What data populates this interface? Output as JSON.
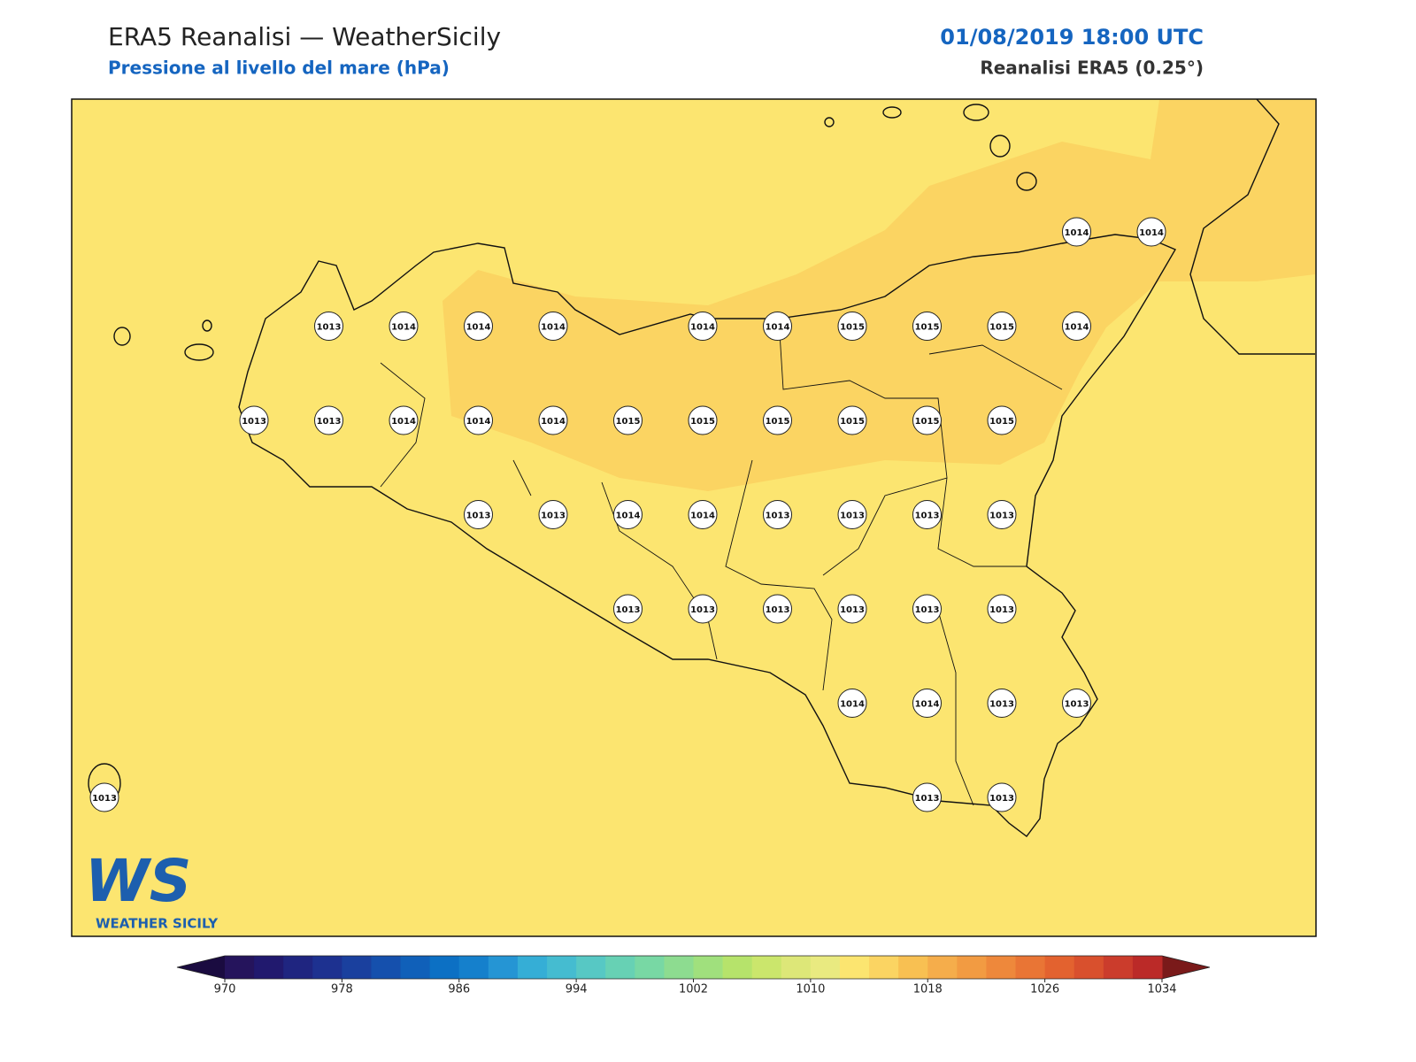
{
  "header": {
    "title": "ERA5 Reanalisi — WeatherSicily",
    "subtitle": "Pressione al livello del mare (hPa)",
    "date": "01/08/2019 18:00 UTC",
    "source": "Reanalisi ERA5 (0.25°)"
  },
  "stations": {
    "values": [
      [
        null,
        null,
        null,
        null,
        null,
        null,
        null,
        null,
        null,
        null,
        null,
        null,
        null,
        1014,
        1014
      ],
      [
        null,
        null,
        null,
        1013,
        1014,
        1014,
        1014,
        null,
        1014,
        1014,
        1015,
        1015,
        1015,
        1014,
        null
      ],
      [
        null,
        null,
        1013,
        1013,
        1014,
        1014,
        1014,
        1015,
        1015,
        1015,
        1015,
        1015,
        1015,
        null,
        null
      ],
      [
        null,
        null,
        null,
        null,
        null,
        1013,
        1013,
        1014,
        1014,
        1013,
        1013,
        1013,
        1013,
        null,
        null
      ],
      [
        null,
        null,
        null,
        null,
        null,
        null,
        null,
        1013,
        1013,
        1013,
        1013,
        1013,
        1013,
        null,
        null
      ],
      [
        null,
        null,
        null,
        null,
        null,
        null,
        null,
        null,
        null,
        null,
        1014,
        1014,
        1013,
        1013,
        null
      ],
      [
        1013,
        null,
        null,
        null,
        null,
        null,
        null,
        null,
        null,
        null,
        null,
        1013,
        1013,
        null,
        null
      ]
    ]
  },
  "colorbar": {
    "lim": [
      970,
      1034
    ],
    "ticks": [
      970,
      978,
      986,
      994,
      1002,
      1010,
      1018,
      1026,
      1034
    ],
    "colors": [
      "#25145c",
      "#21196e",
      "#1f2580",
      "#1d3190",
      "#1a409e",
      "#1550ad",
      "#1060b9",
      "#0c70c4",
      "#1580cc",
      "#2595d4",
      "#35aed6",
      "#45bcd0",
      "#57c8c4",
      "#67d1b4",
      "#78d8a4",
      "#8ddc90",
      "#a0e07d",
      "#b6e36b",
      "#cbe66c",
      "#dde778",
      "#e9ea80",
      "#fce570",
      "#fbd462",
      "#f8c052",
      "#f5ad4b",
      "#f29b42",
      "#ee883b",
      "#e97535",
      "#e3622f",
      "#d9502d",
      "#cb3c2c",
      "#bb2a28"
    ],
    "under_color": "#1a0b40",
    "over_color": "#7a1a1a"
  },
  "logo": {
    "mark": "WS",
    "name": "WEATHER SICILY"
  }
}
